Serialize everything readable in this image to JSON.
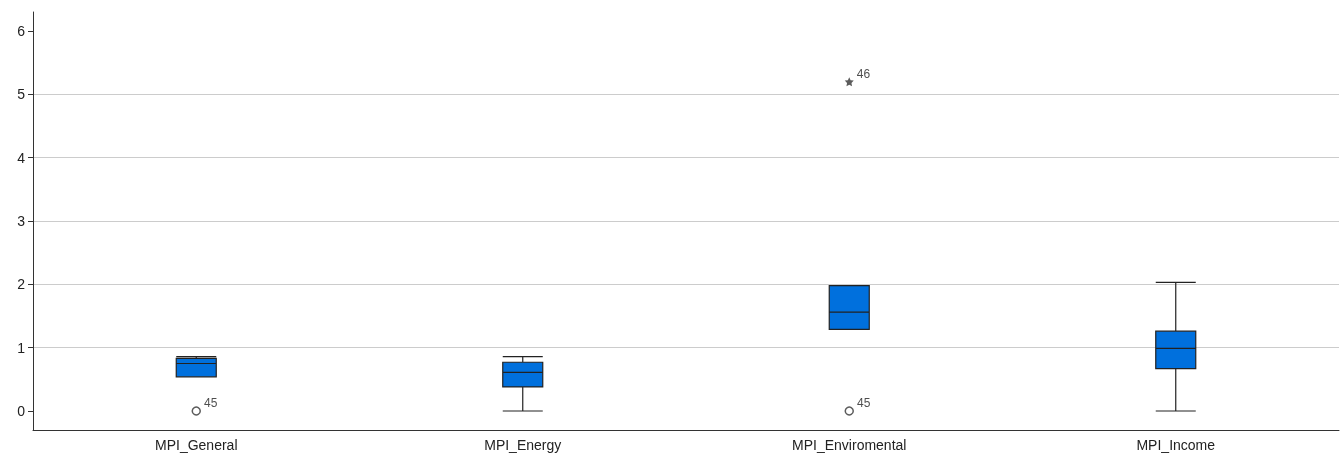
{
  "chart_data": {
    "type": "box",
    "categories": [
      "MPI_General",
      "MPI_Energy",
      "MPI_Enviromental",
      "MPI_Income"
    ],
    "color": "#0070dd",
    "boxes": [
      {
        "low": 0.54,
        "q1": 0.54,
        "median": 0.75,
        "q3": 0.83,
        "high": 0.86,
        "outliers": [
          0
        ]
      },
      {
        "low": 0,
        "q1": 0.38,
        "median": 0.61,
        "q3": 0.77,
        "high": 0.86
      },
      {
        "low": 1.29,
        "q1": 1.29,
        "median": 1.56,
        "q3": 1.98,
        "high": 1.98,
        "outliers": [
          0,
          5.2
        ]
      },
      {
        "low": 0,
        "q1": 0.67,
        "median": 0.99,
        "q3": 1.26,
        "high": 2.03
      }
    ],
    "annotations": [
      "45",
      "45",
      "46"
    ],
    "ylim": [
      -0.3,
      6.3
    ],
    "yticks": [
      0,
      1,
      2,
      3,
      4,
      5,
      6
    ],
    "grid": "y"
  }
}
